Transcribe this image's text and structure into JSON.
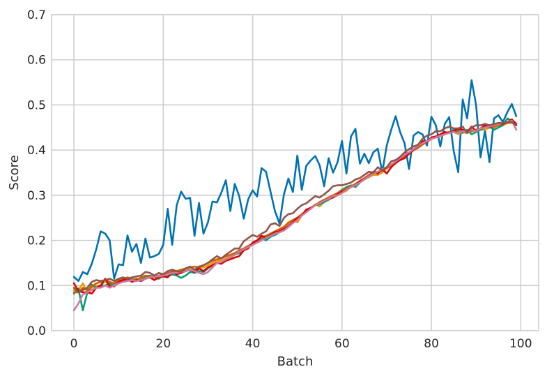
{
  "chart_data": {
    "type": "line",
    "title": "",
    "xlabel": "Batch",
    "ylabel": "Score",
    "xlim": [
      -5,
      104
    ],
    "ylim": [
      0,
      0.7
    ],
    "xticks": [
      0,
      20,
      40,
      60,
      80,
      100
    ],
    "yticks": [
      0.0,
      0.1,
      0.2,
      0.3,
      0.4,
      0.5,
      0.6,
      0.7
    ],
    "xtick_labels": [
      "0",
      "20",
      "40",
      "60",
      "80",
      "100"
    ],
    "ytick_labels": [
      "0.0",
      "0.1",
      "0.2",
      "0.3",
      "0.4",
      "0.5",
      "0.6",
      "0.7"
    ],
    "grid": true,
    "legend": "none",
    "x": [
      0,
      1,
      2,
      3,
      4,
      5,
      6,
      7,
      8,
      9,
      10,
      11,
      12,
      13,
      14,
      15,
      16,
      17,
      18,
      19,
      20,
      21,
      22,
      23,
      24,
      25,
      26,
      27,
      28,
      29,
      30,
      31,
      32,
      33,
      34,
      35,
      36,
      37,
      38,
      39,
      40,
      41,
      42,
      43,
      44,
      45,
      46,
      47,
      48,
      49,
      50,
      51,
      52,
      53,
      54,
      55,
      56,
      57,
      58,
      59,
      60,
      61,
      62,
      63,
      64,
      65,
      66,
      67,
      68,
      69,
      70,
      71,
      72,
      73,
      74,
      75,
      76,
      77,
      78,
      79,
      80,
      81,
      82,
      83,
      84,
      85,
      86,
      87,
      88,
      89,
      90,
      91,
      92,
      93,
      94,
      95,
      96,
      97,
      98,
      99
    ],
    "series": [
      {
        "color": "#0072B2",
        "values": [
          0.119,
          0.11,
          0.13,
          0.125,
          0.148,
          0.18,
          0.22,
          0.215,
          0.2,
          0.115,
          0.147,
          0.145,
          0.211,
          0.175,
          0.192,
          0.15,
          0.204,
          0.162,
          0.165,
          0.17,
          0.19,
          0.27,
          0.19,
          0.278,
          0.308,
          0.292,
          0.294,
          0.21,
          0.283,
          0.215,
          0.24,
          0.286,
          0.284,
          0.306,
          0.333,
          0.265,
          0.325,
          0.298,
          0.248,
          0.291,
          0.311,
          0.297,
          0.36,
          0.352,
          0.308,
          0.265,
          0.237,
          0.302,
          0.337,
          0.307,
          0.388,
          0.312,
          0.365,
          0.377,
          0.387,
          0.366,
          0.32,
          0.382,
          0.35,
          0.373,
          0.42,
          0.348,
          0.43,
          0.447,
          0.37,
          0.392,
          0.371,
          0.395,
          0.403,
          0.351,
          0.41,
          0.445,
          0.475,
          0.44,
          0.415,
          0.358,
          0.432,
          0.44,
          0.435,
          0.41,
          0.474,
          0.455,
          0.408,
          0.458,
          0.473,
          0.397,
          0.351,
          0.512,
          0.47,
          0.555,
          0.5,
          0.384,
          0.443,
          0.373,
          0.47,
          0.477,
          0.462,
          0.484,
          0.502,
          0.475
        ]
      },
      {
        "color": "#E69F00",
        "values": [
          0.09,
          0.09,
          0.105,
          0.085,
          0.095,
          0.1,
          0.1,
          0.11,
          0.1,
          0.1,
          0.105,
          0.11,
          0.115,
          0.11,
          0.11,
          0.115,
          0.115,
          0.12,
          0.12,
          0.12,
          0.125,
          0.125,
          0.13,
          0.13,
          0.135,
          0.135,
          0.14,
          0.135,
          0.14,
          0.14,
          0.145,
          0.15,
          0.155,
          0.155,
          0.16,
          0.165,
          0.17,
          0.175,
          0.18,
          0.185,
          0.19,
          0.2,
          0.21,
          0.205,
          0.215,
          0.22,
          0.22,
          0.23,
          0.24,
          0.245,
          0.24,
          0.255,
          0.265,
          0.27,
          0.28,
          0.275,
          0.285,
          0.29,
          0.295,
          0.3,
          0.305,
          0.31,
          0.32,
          0.32,
          0.33,
          0.335,
          0.34,
          0.345,
          0.345,
          0.35,
          0.36,
          0.365,
          0.37,
          0.38,
          0.39,
          0.395,
          0.4,
          0.405,
          0.415,
          0.42,
          0.425,
          0.43,
          0.43,
          0.435,
          0.44,
          0.44,
          0.435,
          0.44,
          0.44,
          0.445,
          0.44,
          0.445,
          0.445,
          0.45,
          0.45,
          0.455,
          0.455,
          0.46,
          0.46,
          0.455
        ]
      },
      {
        "color": "#009E73",
        "values": [
          0.082,
          0.093,
          0.045,
          0.085,
          0.102,
          0.095,
          0.1,
          0.1,
          0.105,
          0.1,
          0.11,
          0.112,
          0.115,
          0.11,
          0.115,
          0.112,
          0.12,
          0.122,
          0.118,
          0.115,
          0.122,
          0.12,
          0.125,
          0.122,
          0.117,
          0.122,
          0.13,
          0.128,
          0.132,
          0.13,
          0.138,
          0.145,
          0.15,
          0.152,
          0.155,
          0.162,
          0.168,
          0.172,
          0.178,
          0.185,
          0.19,
          0.198,
          0.205,
          0.2,
          0.208,
          0.212,
          0.218,
          0.222,
          0.23,
          0.24,
          0.245,
          0.255,
          0.265,
          0.272,
          0.278,
          0.28,
          0.285,
          0.29,
          0.298,
          0.305,
          0.312,
          0.318,
          0.322,
          0.318,
          0.328,
          0.335,
          0.342,
          0.348,
          0.352,
          0.355,
          0.362,
          0.368,
          0.372,
          0.38,
          0.388,
          0.392,
          0.4,
          0.41,
          0.415,
          0.42,
          0.425,
          0.43,
          0.432,
          0.435,
          0.44,
          0.445,
          0.44,
          0.438,
          0.445,
          0.435,
          0.44,
          0.445,
          0.45,
          0.452,
          0.445,
          0.45,
          0.455,
          0.47,
          0.465,
          0.455
        ]
      },
      {
        "color": "#D55E00",
        "values": [
          0.085,
          0.085,
          0.095,
          0.09,
          0.098,
          0.105,
          0.108,
          0.112,
          0.108,
          0.105,
          0.112,
          0.115,
          0.118,
          0.115,
          0.112,
          0.118,
          0.122,
          0.12,
          0.118,
          0.122,
          0.125,
          0.128,
          0.13,
          0.132,
          0.135,
          0.138,
          0.14,
          0.142,
          0.14,
          0.145,
          0.15,
          0.155,
          0.158,
          0.16,
          0.165,
          0.168,
          0.172,
          0.178,
          0.182,
          0.188,
          0.192,
          0.198,
          0.208,
          0.21,
          0.215,
          0.22,
          0.225,
          0.23,
          0.238,
          0.245,
          0.25,
          0.258,
          0.265,
          0.272,
          0.278,
          0.285,
          0.29,
          0.295,
          0.3,
          0.305,
          0.31,
          0.315,
          0.32,
          0.325,
          0.332,
          0.338,
          0.345,
          0.35,
          0.352,
          0.355,
          0.36,
          0.365,
          0.372,
          0.378,
          0.385,
          0.392,
          0.4,
          0.405,
          0.412,
          0.418,
          0.425,
          0.428,
          0.432,
          0.438,
          0.44,
          0.442,
          0.445,
          0.44,
          0.438,
          0.442,
          0.445,
          0.448,
          0.45,
          0.452,
          0.452,
          0.455,
          0.458,
          0.46,
          0.462,
          0.458
        ]
      },
      {
        "color": "#DD0000",
        "values": [
          0.105,
          0.088,
          0.085,
          0.085,
          0.082,
          0.095,
          0.1,
          0.115,
          0.098,
          0.098,
          0.108,
          0.112,
          0.115,
          0.108,
          0.112,
          0.11,
          0.115,
          0.118,
          0.112,
          0.118,
          0.12,
          0.118,
          0.13,
          0.125,
          0.128,
          0.132,
          0.135,
          0.13,
          0.138,
          0.132,
          0.14,
          0.145,
          0.15,
          0.148,
          0.155,
          0.158,
          0.162,
          0.165,
          0.178,
          0.182,
          0.195,
          0.2,
          0.21,
          0.205,
          0.212,
          0.218,
          0.22,
          0.225,
          0.232,
          0.24,
          0.25,
          0.255,
          0.268,
          0.272,
          0.278,
          0.282,
          0.288,
          0.292,
          0.295,
          0.302,
          0.308,
          0.312,
          0.318,
          0.322,
          0.33,
          0.335,
          0.342,
          0.352,
          0.348,
          0.358,
          0.348,
          0.362,
          0.372,
          0.378,
          0.382,
          0.392,
          0.4,
          0.41,
          0.42,
          0.418,
          0.428,
          0.43,
          0.435,
          0.44,
          0.438,
          0.442,
          0.448,
          0.445,
          0.44,
          0.452,
          0.442,
          0.448,
          0.455,
          0.45,
          0.455,
          0.46,
          0.458,
          0.462,
          0.468,
          0.458
        ]
      },
      {
        "color": "#CC79A7",
        "values": [
          0.045,
          0.06,
          0.08,
          0.085,
          0.09,
          0.095,
          0.095,
          0.1,
          0.095,
          0.1,
          0.105,
          0.108,
          0.11,
          0.112,
          0.11,
          0.112,
          0.115,
          0.118,
          0.12,
          0.12,
          0.122,
          0.125,
          0.128,
          0.128,
          0.13,
          0.132,
          0.135,
          0.132,
          0.128,
          0.125,
          0.13,
          0.14,
          0.15,
          0.152,
          0.158,
          0.162,
          0.168,
          0.175,
          0.18,
          0.185,
          0.19,
          0.195,
          0.2,
          0.205,
          0.21,
          0.215,
          0.218,
          0.222,
          0.23,
          0.238,
          0.245,
          0.255,
          0.262,
          0.27,
          0.278,
          0.282,
          0.288,
          0.292,
          0.298,
          0.3,
          0.305,
          0.312,
          0.318,
          0.322,
          0.328,
          0.335,
          0.342,
          0.348,
          0.352,
          0.358,
          0.362,
          0.368,
          0.375,
          0.382,
          0.39,
          0.395,
          0.402,
          0.41,
          0.415,
          0.42,
          0.425,
          0.428,
          0.432,
          0.435,
          0.438,
          0.44,
          0.438,
          0.442,
          0.44,
          0.445,
          0.442,
          0.448,
          0.45,
          0.452,
          0.455,
          0.458,
          0.46,
          0.462,
          0.465,
          0.445
        ]
      },
      {
        "color": "#8C564B",
        "values": [
          0.095,
          0.085,
          0.09,
          0.095,
          0.108,
          0.112,
          0.11,
          0.112,
          0.115,
          0.11,
          0.115,
          0.118,
          0.115,
          0.118,
          0.12,
          0.122,
          0.13,
          0.128,
          0.122,
          0.128,
          0.125,
          0.132,
          0.135,
          0.132,
          0.13,
          0.138,
          0.142,
          0.135,
          0.142,
          0.145,
          0.15,
          0.158,
          0.165,
          0.16,
          0.168,
          0.175,
          0.182,
          0.182,
          0.198,
          0.205,
          0.212,
          0.208,
          0.215,
          0.22,
          0.235,
          0.238,
          0.232,
          0.25,
          0.258,
          0.26,
          0.27,
          0.278,
          0.282,
          0.29,
          0.298,
          0.295,
          0.302,
          0.31,
          0.32,
          0.322,
          0.322,
          0.325,
          0.328,
          0.335,
          0.338,
          0.345,
          0.352,
          0.35,
          0.362,
          0.355,
          0.362,
          0.375,
          0.378,
          0.385,
          0.395,
          0.402,
          0.408,
          0.412,
          0.425,
          0.432,
          0.435,
          0.442,
          0.442,
          0.448,
          0.452,
          0.448,
          0.448,
          0.452,
          0.438,
          0.45,
          0.455,
          0.455,
          0.458,
          0.455,
          0.458,
          0.46,
          0.46,
          0.462,
          0.462,
          0.455
        ]
      }
    ]
  }
}
